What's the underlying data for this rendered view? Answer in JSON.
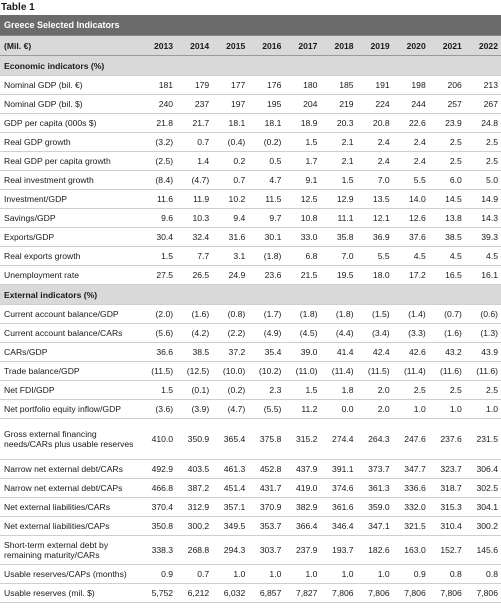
{
  "caption": "Table 1",
  "title": "Greece Selected Indicators",
  "unit": "(Mil. €)",
  "years": [
    "2013",
    "2014",
    "2015",
    "2016",
    "2017",
    "2018",
    "2019",
    "2020",
    "2021",
    "2022"
  ],
  "sections": [
    {
      "name": "Economic indicators (%)",
      "rows": [
        {
          "label": "Nominal GDP (bil. €)",
          "values": [
            "181",
            "179",
            "177",
            "176",
            "180",
            "185",
            "191",
            "198",
            "206",
            "213"
          ]
        },
        {
          "label": "Nominal GDP (bil. $)",
          "values": [
            "240",
            "237",
            "197",
            "195",
            "204",
            "219",
            "224",
            "244",
            "257",
            "267"
          ]
        },
        {
          "label": "GDP per capita (000s $)",
          "values": [
            "21.8",
            "21.7",
            "18.1",
            "18.1",
            "18.9",
            "20.3",
            "20.8",
            "22.6",
            "23.9",
            "24.8"
          ]
        },
        {
          "label": "Real GDP growth",
          "values": [
            "(3.2)",
            "0.7",
            "(0.4)",
            "(0.2)",
            "1.5",
            "2.1",
            "2.4",
            "2.4",
            "2.5",
            "2.5"
          ]
        },
        {
          "label": "Real GDP per capita growth",
          "values": [
            "(2.5)",
            "1.4",
            "0.2",
            "0.5",
            "1.7",
            "2.1",
            "2.4",
            "2.4",
            "2.5",
            "2.5"
          ]
        },
        {
          "label": "Real investment growth",
          "values": [
            "(8.4)",
            "(4.7)",
            "0.7",
            "4.7",
            "9.1",
            "1.5",
            "7.0",
            "5.5",
            "6.0",
            "5.0"
          ]
        },
        {
          "label": "Investment/GDP",
          "values": [
            "11.6",
            "11.9",
            "10.2",
            "11.5",
            "12.5",
            "12.9",
            "13.5",
            "14.0",
            "14.5",
            "14.9"
          ]
        },
        {
          "label": "Savings/GDP",
          "values": [
            "9.6",
            "10.3",
            "9.4",
            "9.7",
            "10.8",
            "11.1",
            "12.1",
            "12.6",
            "13.8",
            "14.3"
          ]
        },
        {
          "label": "Exports/GDP",
          "values": [
            "30.4",
            "32.4",
            "31.6",
            "30.1",
            "33.0",
            "35.8",
            "36.9",
            "37.6",
            "38.5",
            "39.3"
          ]
        },
        {
          "label": "Real exports growth",
          "values": [
            "1.5",
            "7.7",
            "3.1",
            "(1.8)",
            "6.8",
            "7.0",
            "5.5",
            "4.5",
            "4.5",
            "4.5"
          ]
        },
        {
          "label": "Unemployment rate",
          "values": [
            "27.5",
            "26.5",
            "24.9",
            "23.6",
            "21.5",
            "19.5",
            "18.0",
            "17.2",
            "16.5",
            "16.1"
          ]
        }
      ]
    },
    {
      "name": "External indicators (%)",
      "rows": [
        {
          "label": "Current account balance/GDP",
          "values": [
            "(2.0)",
            "(1.6)",
            "(0.8)",
            "(1.7)",
            "(1.8)",
            "(1.8)",
            "(1.5)",
            "(1.4)",
            "(0.7)",
            "(0.6)"
          ]
        },
        {
          "label": "Current account balance/CARs",
          "values": [
            "(5.6)",
            "(4.2)",
            "(2.2)",
            "(4.9)",
            "(4.5)",
            "(4.4)",
            "(3.4)",
            "(3.3)",
            "(1.6)",
            "(1.3)"
          ]
        },
        {
          "label": "CARs/GDP",
          "values": [
            "36.6",
            "38.5",
            "37.2",
            "35.4",
            "39.0",
            "41.4",
            "42.4",
            "42.6",
            "43.2",
            "43.9"
          ]
        },
        {
          "label": "Trade balance/GDP",
          "values": [
            "(11.5)",
            "(12.5)",
            "(10.0)",
            "(10.2)",
            "(11.0)",
            "(11.4)",
            "(11.5)",
            "(11.4)",
            "(11.6)",
            "(11.6)"
          ]
        },
        {
          "label": "Net FDI/GDP",
          "values": [
            "1.5",
            "(0.1)",
            "(0.2)",
            "2.3",
            "1.5",
            "1.8",
            "2.0",
            "2.5",
            "2.5",
            "2.5"
          ]
        },
        {
          "label": "Net portfolio equity inflow/GDP",
          "values": [
            "(3.6)",
            "(3.9)",
            "(4.7)",
            "(5.5)",
            "11.2",
            "0.0",
            "2.0",
            "1.0",
            "1.0",
            "1.0"
          ]
        },
        {
          "label": "Gross external financing needs/CARs plus usable reserves",
          "values": [
            "410.0",
            "350.9",
            "365.4",
            "375.8",
            "315.2",
            "274.4",
            "264.3",
            "247.6",
            "237.6",
            "231.5"
          ],
          "tall": 3
        },
        {
          "label": "Narrow net external debt/CARs",
          "values": [
            "492.9",
            "403.5",
            "461.3",
            "452.8",
            "437.9",
            "391.1",
            "373.7",
            "347.7",
            "323.7",
            "306.4"
          ]
        },
        {
          "label": "Narrow net external debt/CAPs",
          "values": [
            "466.8",
            "387.2",
            "451.4",
            "431.7",
            "419.0",
            "374.6",
            "361.3",
            "336.6",
            "318.7",
            "302.5"
          ]
        },
        {
          "label": "Net external liabilities/CARs",
          "values": [
            "370.4",
            "312.9",
            "357.1",
            "370.9",
            "382.9",
            "361.6",
            "359.0",
            "332.0",
            "315.3",
            "304.1"
          ]
        },
        {
          "label": "Net external liabilities/CAPs",
          "values": [
            "350.8",
            "300.2",
            "349.5",
            "353.7",
            "366.4",
            "346.4",
            "347.1",
            "321.5",
            "310.4",
            "300.2"
          ]
        },
        {
          "label": "Short-term external debt by remaining maturity/CARs",
          "values": [
            "338.3",
            "268.8",
            "294.3",
            "303.7",
            "237.9",
            "193.7",
            "182.6",
            "163.0",
            "152.7",
            "145.6"
          ],
          "tall": 2
        },
        {
          "label": "Usable reserves/CAPs (months)",
          "values": [
            "0.9",
            "0.7",
            "1.0",
            "1.0",
            "1.0",
            "1.0",
            "1.0",
            "0.9",
            "0.8",
            "0.8"
          ]
        },
        {
          "label": "Usable reserves (mil. $)",
          "values": [
            "5,752",
            "6,212",
            "6,032",
            "6,857",
            "7,827",
            "7,806",
            "7,806",
            "7,806",
            "7,806",
            "7,806"
          ]
        }
      ]
    }
  ]
}
